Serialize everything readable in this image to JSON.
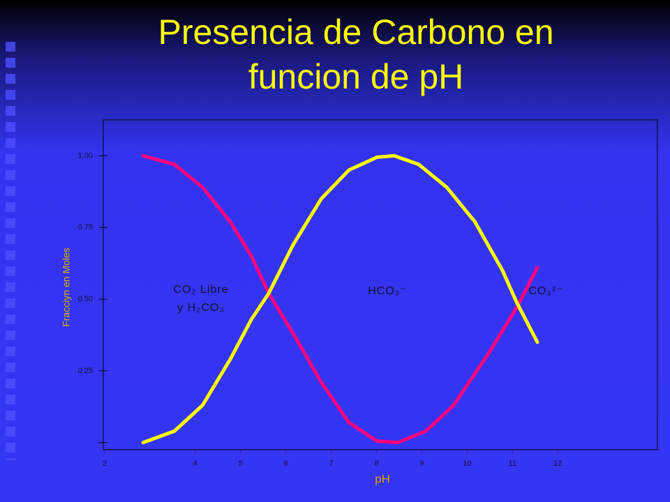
{
  "chart_data": {
    "type": "line",
    "title": "Presencia de Carbono en funcion de pH",
    "x_label": "pH",
    "y_label": "Fracciyn en Moles",
    "annotations": [
      "CO₂ Libre",
      "y H₂CO₃",
      "HCO₃⁻",
      "CO₃²⁻"
    ],
    "xlim": [
      2,
      14.2
    ],
    "ylim": [
      -0.025,
      1.125
    ],
    "xticks": [
      2,
      4,
      5,
      6,
      7,
      8,
      9,
      10,
      11,
      12
    ],
    "yticks": [
      {
        "value": 0,
        "label": null
      },
      {
        "value": 0.25,
        "label": "0.25"
      },
      {
        "value": 0.5,
        "label": "0.50"
      },
      {
        "value": 0.75,
        "label": "0.75"
      },
      {
        "value": 1,
        "label": "1.00"
      }
    ],
    "series": [
      {
        "color": "#ff0080",
        "x": [
          2.85,
          3.54,
          4.16,
          4.77,
          5.24,
          5.62,
          6.16,
          6.78,
          7.39,
          8.01,
          8.47,
          9.09,
          9.7,
          10.47,
          11.09,
          11.55
        ],
        "values": [
          1.0,
          0.97,
          0.89,
          0.77,
          0.65,
          0.52,
          0.38,
          0.21,
          0.07,
          0.005,
          0.0,
          0.04,
          0.13,
          0.31,
          0.47,
          0.61
        ]
      },
      {
        "color": "#ffff00",
        "x": [
          2.85,
          3.54,
          4.16,
          4.77,
          5.24,
          5.62,
          6.16,
          6.78,
          7.39,
          8.01,
          8.39,
          8.93,
          9.55,
          10.17,
          10.78,
          11.09,
          11.55
        ],
        "values": [
          0.0,
          0.04,
          0.13,
          0.29,
          0.43,
          0.52,
          0.69,
          0.85,
          0.95,
          0.995,
          1.0,
          0.97,
          0.89,
          0.77,
          0.6,
          0.49,
          0.35
        ]
      }
    ]
  }
}
